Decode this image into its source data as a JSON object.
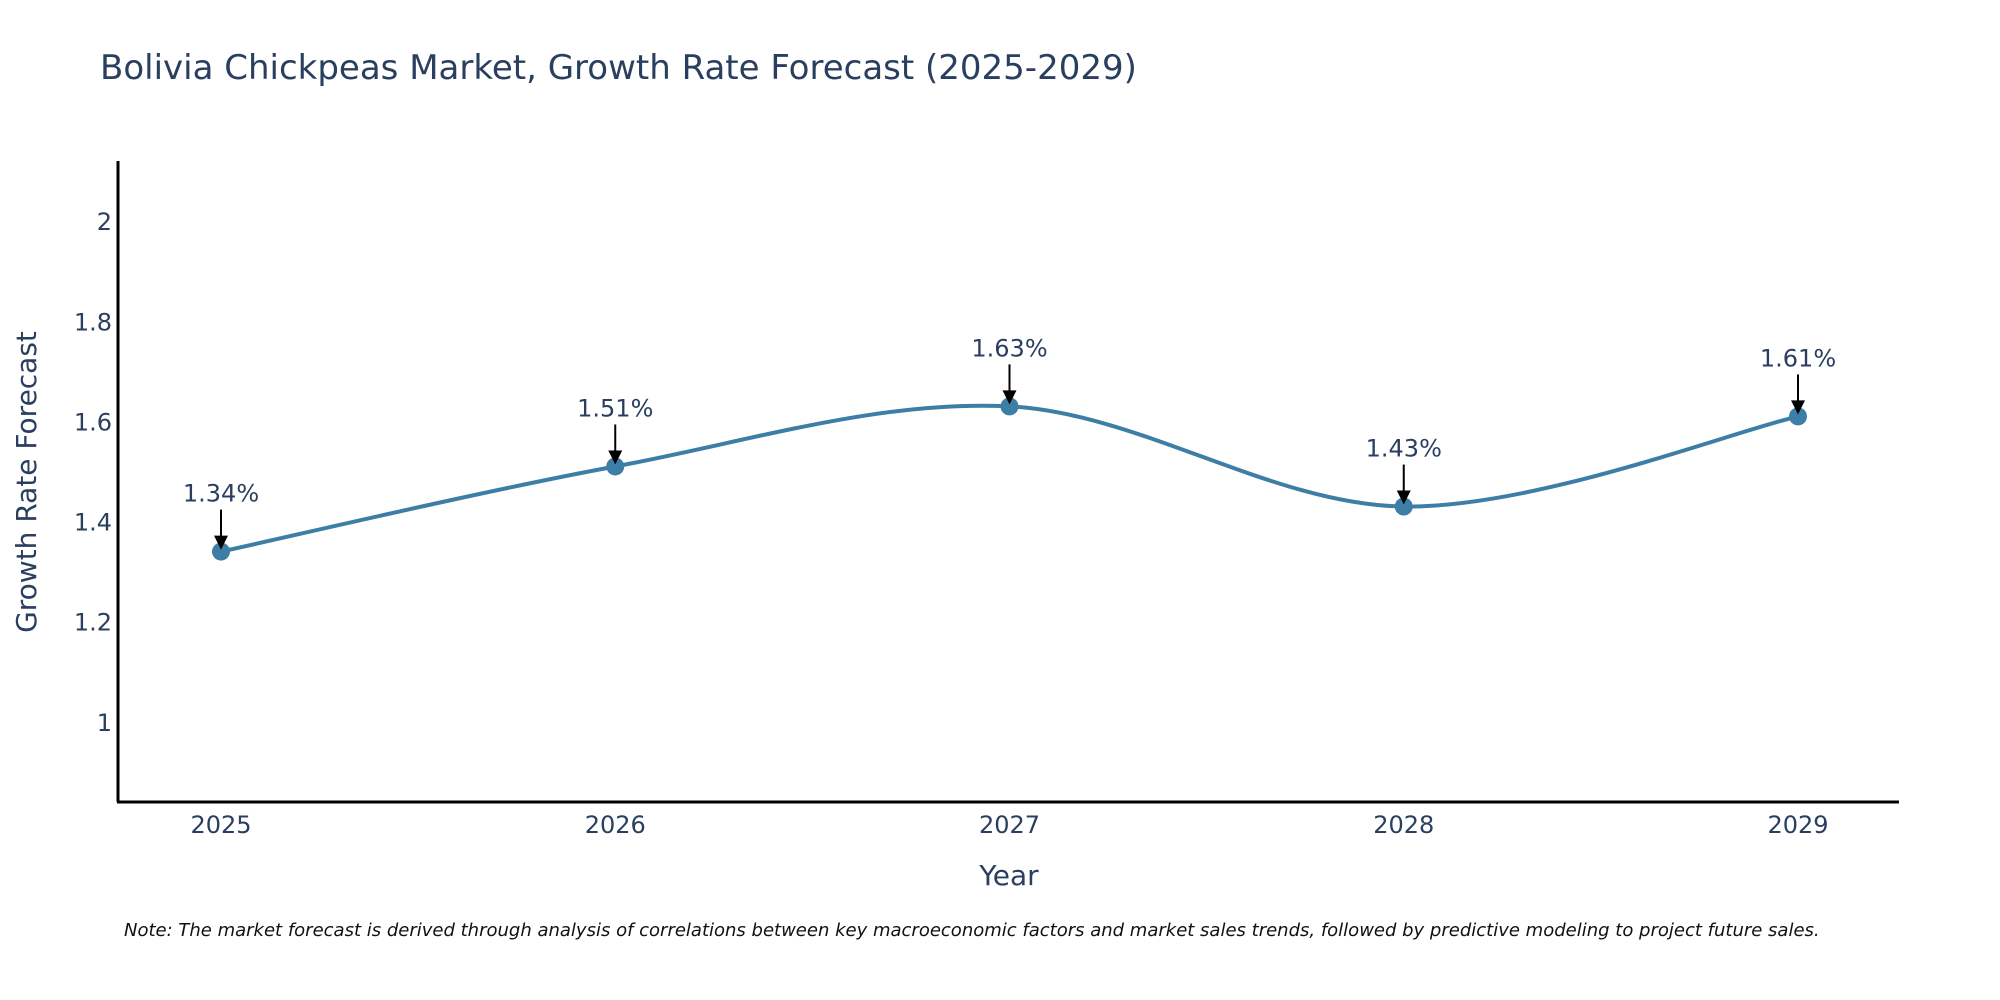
{
  "chart_data": {
    "type": "line",
    "title": "Bolivia Chickpeas Market, Growth Rate Forecast (2025-2029)",
    "xlabel": "Year",
    "ylabel": "Growth Rate Forecast",
    "categories": [
      "2025",
      "2026",
      "2027",
      "2028",
      "2029"
    ],
    "values": [
      1.34,
      1.51,
      1.63,
      1.43,
      1.61
    ],
    "data_labels": [
      "1.34%",
      "1.51%",
      "1.63%",
      "1.43%",
      "1.61%"
    ],
    "yticks": [
      1,
      1.2,
      1.4,
      1.6,
      1.8,
      2
    ],
    "ytick_labels": [
      "1",
      "1.2",
      "1.4",
      "1.6",
      "1.8",
      "2"
    ],
    "ylim": [
      0.84,
      2.12
    ],
    "grid": false,
    "line_color": "#3d7ea6",
    "note": "Note: The market forecast is derived through analysis of correlations between key macroeconomic factors and market sales trends, followed by predictive modeling to project future sales."
  }
}
